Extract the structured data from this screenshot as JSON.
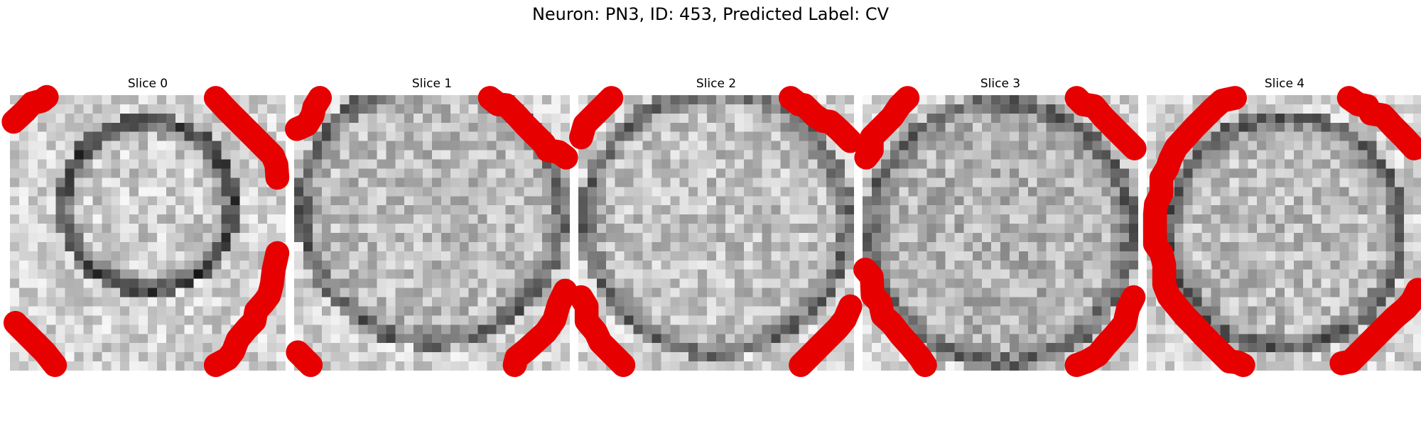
{
  "figure": {
    "title": "Neuron: PN3, ID: 453, Predicted Label: CV",
    "contour_color": "#e60000",
    "colormap": "gray"
  },
  "slices": [
    {
      "label": "Slice 0"
    },
    {
      "label": "Slice 1"
    },
    {
      "label": "Slice 2"
    },
    {
      "label": "Slice 3"
    },
    {
      "label": "Slice 4"
    }
  ]
}
